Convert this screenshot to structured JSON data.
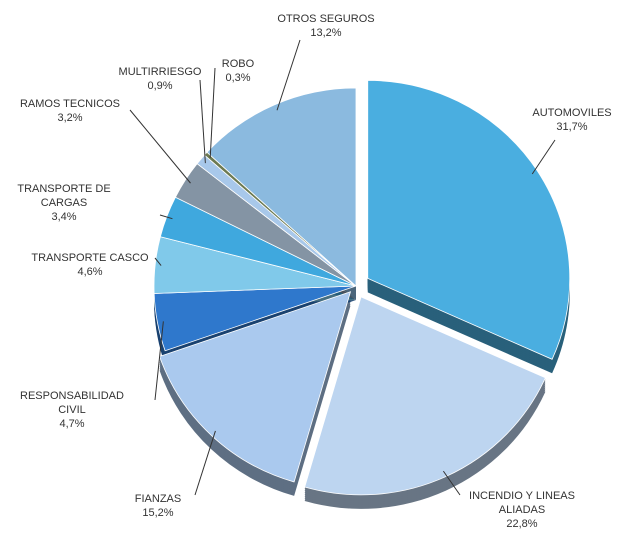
{
  "chart_data": {
    "type": "pie",
    "categories": [
      "AUTOMOVILES",
      "INCENDIO Y LINEAS ALIADAS",
      "FIANZAS",
      "RESPONSABILIDAD CIVIL",
      "TRANSPORTE CASCO",
      "TRANSPORTE DE CARGAS",
      "RAMOS TECNICOS",
      "MULTIRRIESGO",
      "ROBO",
      "OTROS SEGUROS"
    ],
    "values": [
      31.7,
      22.8,
      15.2,
      4.7,
      4.6,
      3.4,
      3.2,
      0.9,
      0.3,
      13.2
    ],
    "value_labels": [
      "31,7%",
      "22,8%",
      "15,2%",
      "4,7%",
      "4,6%",
      "3,4%",
      "3,2%",
      "0,9%",
      "0,3%",
      "13,2%"
    ],
    "colors": [
      "#4aaee0",
      "#bdd5f0",
      "#aac9ee",
      "#2f78cc",
      "#80c9ea",
      "#3fa8de",
      "#8494a4",
      "#a8c8ea",
      "#6c7a52",
      "#8bbadf"
    ]
  }
}
